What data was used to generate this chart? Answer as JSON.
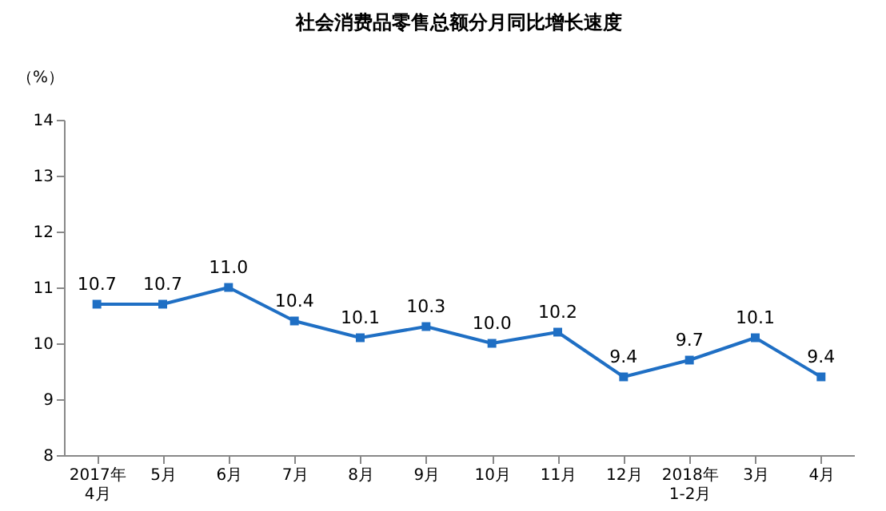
{
  "chart_data": {
    "type": "line",
    "title": "社会消费品零售总额分月同比增长速度",
    "ylabel": "（%）",
    "categories": [
      "2017年\n4月",
      "5月",
      "6月",
      "7月",
      "8月",
      "9月",
      "10月",
      "11月",
      "12月",
      "2018年\n1-2月",
      "3月",
      "4月"
    ],
    "series": [
      {
        "color": "#1f6fc4",
        "values": [
          10.7,
          10.7,
          11.0,
          10.4,
          10.1,
          10.3,
          10.0,
          10.2,
          9.4,
          9.7,
          10.1,
          9.4
        ],
        "value_labels": [
          "10.7",
          "10.7",
          "11.0",
          "10.4",
          "10.1",
          "10.3",
          "10.0",
          "10.2",
          "9.4",
          "9.7",
          "10.1",
          "9.4"
        ]
      }
    ],
    "ylim": [
      8,
      14
    ],
    "yticks": [
      8,
      9,
      10,
      11,
      12,
      13,
      14
    ],
    "grid": false,
    "legend": false,
    "marker": "square",
    "line_style": "solid"
  }
}
